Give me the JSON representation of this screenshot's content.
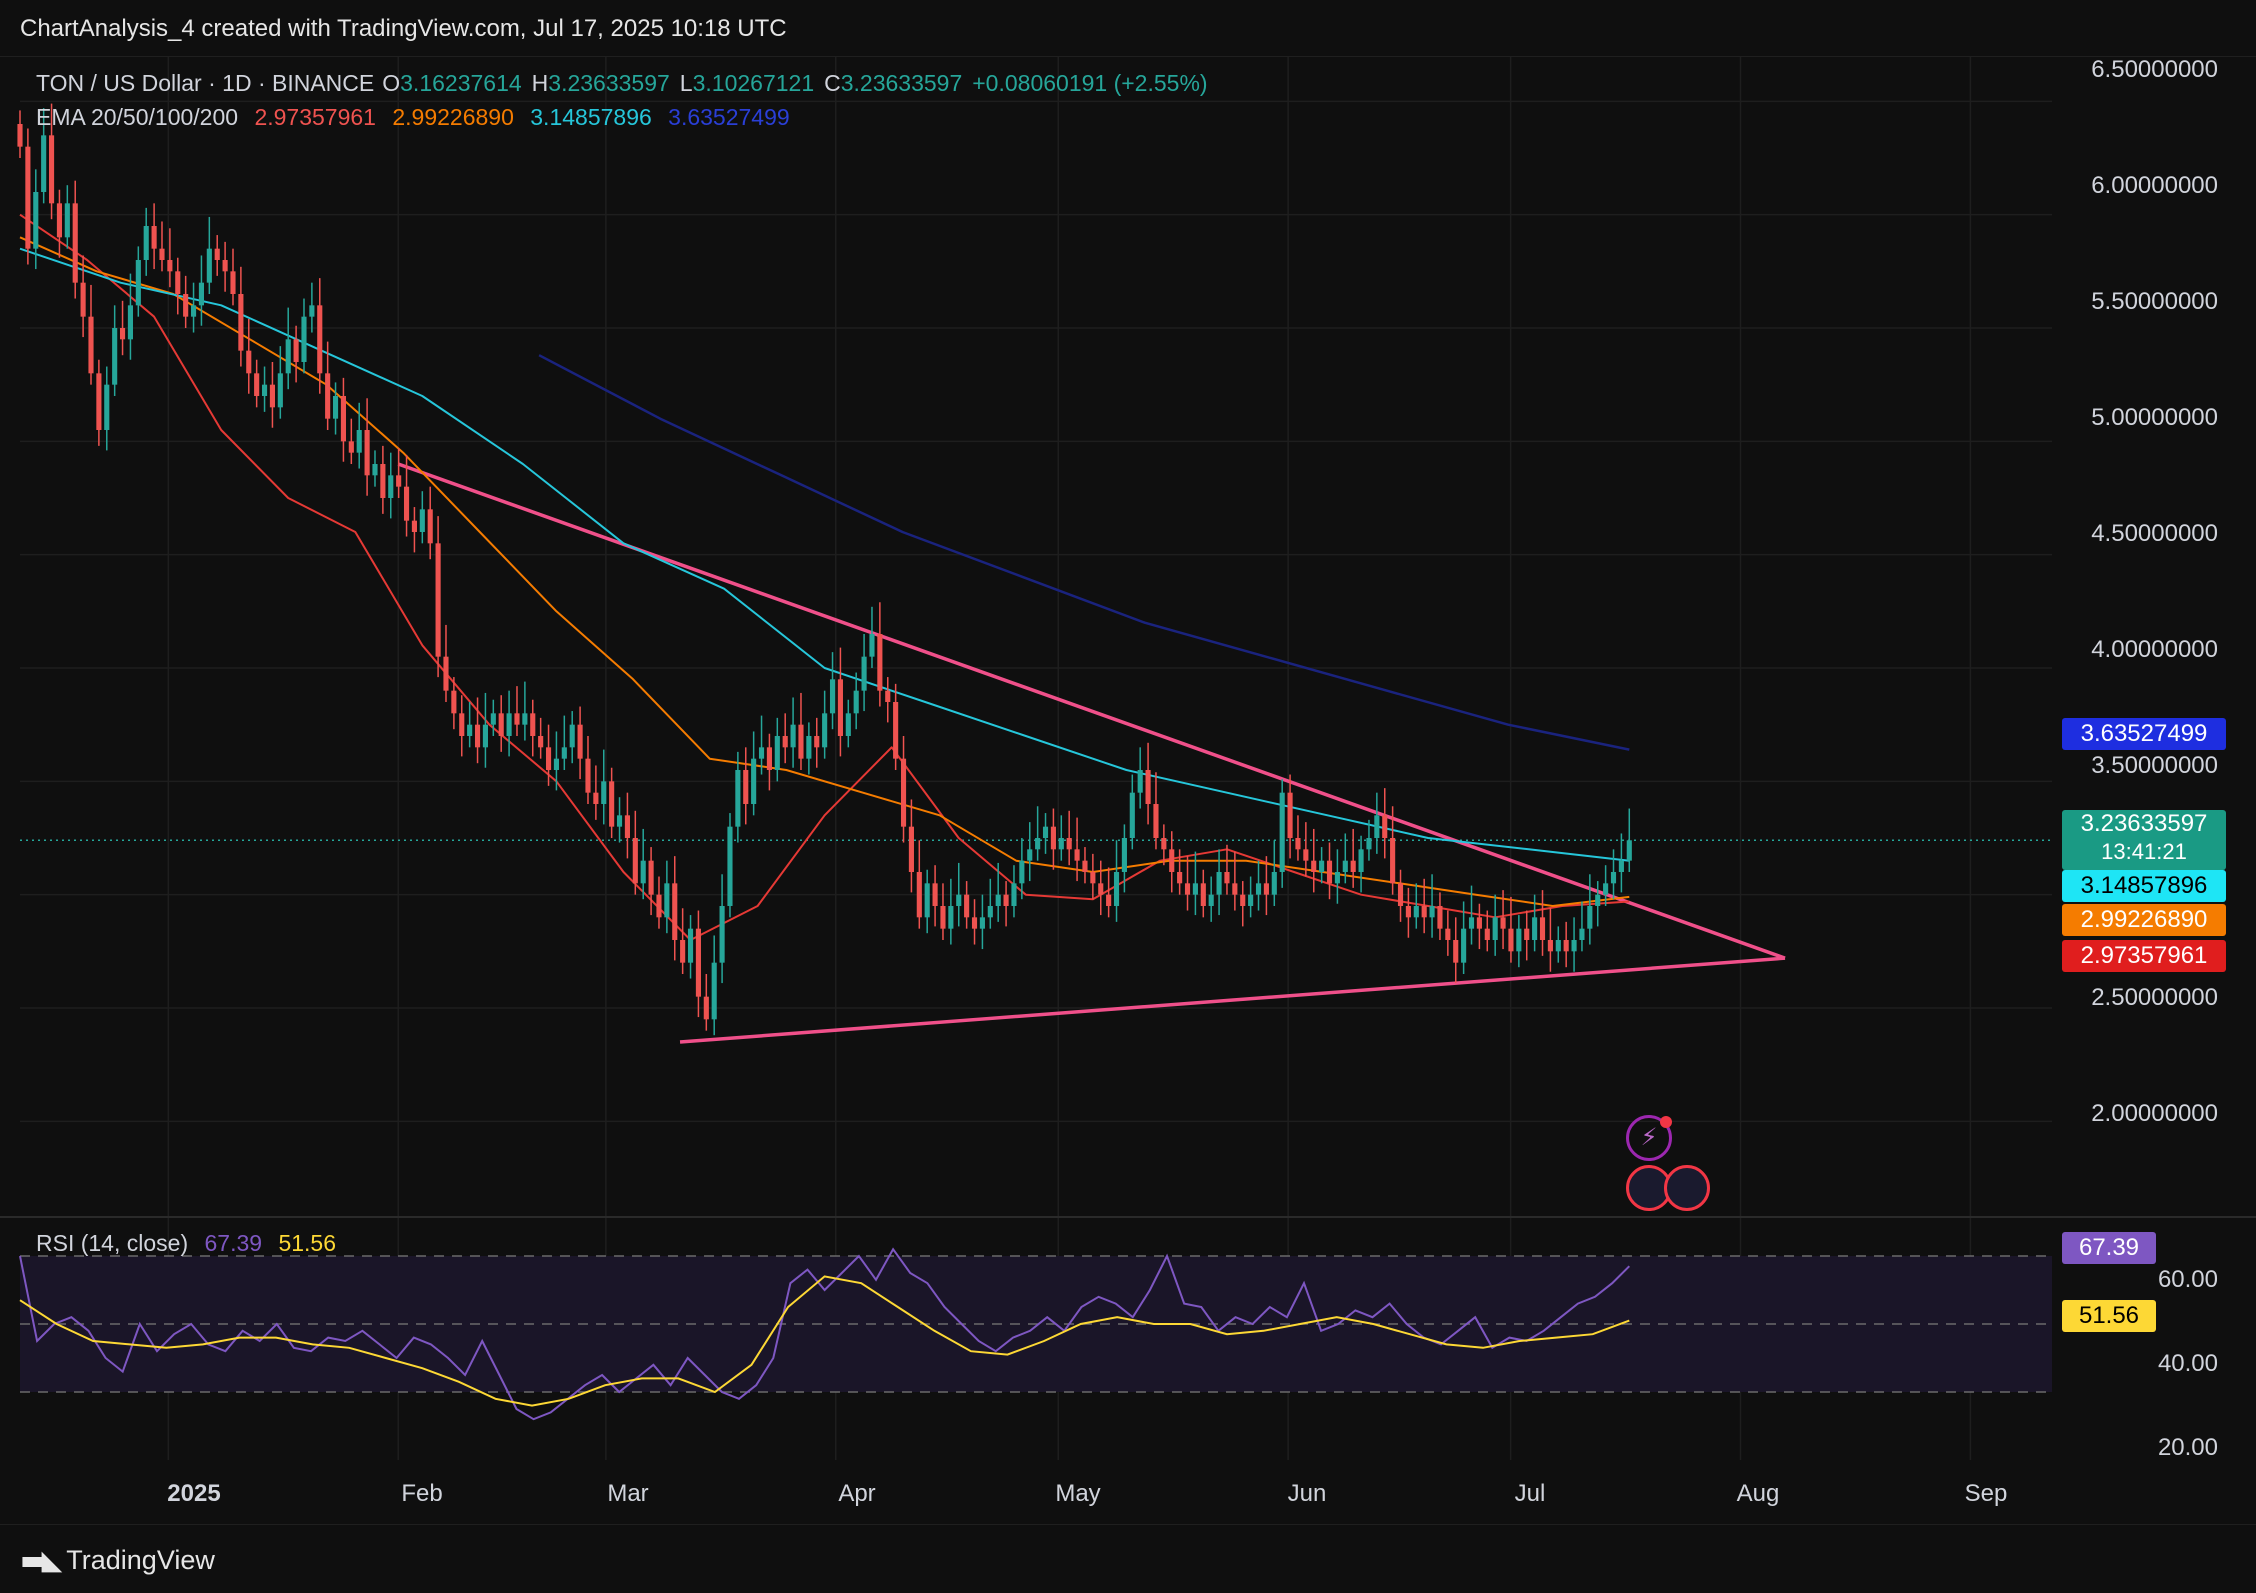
{
  "header": {
    "attribution": "ChartAnalysis_4 created with TradingView.com, Jul 17, 2025 10:18 UTC"
  },
  "legend": {
    "symbol": "TON / US Dollar · 1D · BINANCE",
    "o_label": "O",
    "o_value": "3.16237614",
    "h_label": "H",
    "h_value": "3.23633597",
    "l_label": "L",
    "l_value": "3.10267121",
    "c_label": "C",
    "c_value": "3.23633597",
    "change": "+0.08060191 (+2.55%)",
    "ema_label": "EMA 20/50/100/200",
    "ema20": "2.97357961",
    "ema50": "2.99226890",
    "ema100": "3.14857896",
    "ema200": "3.63527499"
  },
  "rsi_legend": {
    "label": "RSI (14, close)",
    "rsi": "67.39",
    "ma": "51.56"
  },
  "price_axis": [
    "6.50000000",
    "6.00000000",
    "5.50000000",
    "5.00000000",
    "4.50000000",
    "4.00000000",
    "3.50000000",
    "2.50000000",
    "2.00000000"
  ],
  "rsi_axis": [
    "60.00",
    "40.00",
    "20.00"
  ],
  "badges": {
    "ema200": "3.63527499",
    "price": "3.23633597",
    "countdown": "13:41:21",
    "ema100": "3.14857896",
    "ema50": "2.99226890",
    "ema20": "2.97357961",
    "rsi": "67.39",
    "rsi_ma": "51.56"
  },
  "time_axis": [
    "2025",
    "Feb",
    "Mar",
    "Apr",
    "May",
    "Jun",
    "Jul",
    "Aug",
    "Sep"
  ],
  "colors": {
    "up": "#26a69a",
    "down": "#ef5350",
    "ema20": "#e53935",
    "ema50": "#f57c00",
    "ema100": "#26c6da",
    "ema200": "#1a237e",
    "trendline": "#f0508a",
    "rsi": "#7e57c2",
    "rsi_ma": "#fdd835"
  },
  "footer": {
    "brand": "TradingView"
  },
  "chart_data": {
    "type": "candlestick",
    "title": "TON / US Dollar · 1D · BINANCE",
    "ylim": [
      1.6,
      6.7
    ],
    "x_range": [
      "2024-12-12",
      "2025-09-12"
    ],
    "ohlc": {
      "start_date": "2024-12-12",
      "closes": [
        6.3,
        5.85,
        6.1,
        6.35,
        6.05,
        5.9,
        6.05,
        5.7,
        5.55,
        5.3,
        5.05,
        5.25,
        5.5,
        5.45,
        5.6,
        5.8,
        5.95,
        5.85,
        5.8,
        5.75,
        5.65,
        5.55,
        5.6,
        5.7,
        5.85,
        5.8,
        5.75,
        5.65,
        5.4,
        5.3,
        5.2,
        5.25,
        5.15,
        5.3,
        5.45,
        5.35,
        5.55,
        5.6,
        5.3,
        5.1,
        5.2,
        5.0,
        4.95,
        5.05,
        4.85,
        4.9,
        4.75,
        4.85,
        4.8,
        4.65,
        4.6,
        4.7,
        4.55,
        4.05,
        3.9,
        3.8,
        3.7,
        3.75,
        3.65,
        3.75,
        3.8,
        3.7,
        3.8,
        3.75,
        3.8,
        3.7,
        3.65,
        3.55,
        3.6,
        3.65,
        3.75,
        3.6,
        3.45,
        3.4,
        3.5,
        3.3,
        3.35,
        3.25,
        3.05,
        3.15,
        3.0,
        2.9,
        3.05,
        2.8,
        2.7,
        2.85,
        2.55,
        2.45,
        2.7,
        2.95,
        3.3,
        3.55,
        3.4,
        3.6,
        3.65,
        3.55,
        3.7,
        3.65,
        3.75,
        3.6,
        3.7,
        3.65,
        3.8,
        3.95,
        3.7,
        3.8,
        3.9,
        4.05,
        4.15,
        3.9,
        3.85,
        3.6,
        3.3,
        3.1,
        2.9,
        3.05,
        2.95,
        2.85,
        2.95,
        3.0,
        2.9,
        2.85,
        2.9,
        2.95,
        3.0,
        2.95,
        3.05,
        3.15,
        3.2,
        3.25,
        3.3,
        3.2,
        3.25,
        3.2,
        3.15,
        3.1,
        3.05,
        3.0,
        2.95,
        3.1,
        3.25,
        3.45,
        3.55,
        3.4,
        3.25,
        3.2,
        3.1,
        3.05,
        3.0,
        3.05,
        2.95,
        3.0,
        3.1,
        3.05,
        3.0,
        2.95,
        3.0,
        3.05,
        3.0,
        3.1,
        3.45,
        3.25,
        3.2,
        3.15,
        3.1,
        3.15,
        3.05,
        3.1,
        3.15,
        3.1,
        3.2,
        3.25,
        3.35,
        3.25,
        3.05,
        2.95,
        2.9,
        2.95,
        2.9,
        2.95,
        2.85,
        2.8,
        2.7,
        2.85,
        2.9,
        2.85,
        2.8,
        2.9,
        2.85,
        2.75,
        2.85,
        2.8,
        2.9,
        2.8,
        2.75,
        2.8,
        2.75,
        2.8,
        2.85,
        2.95,
        3.0,
        3.05,
        3.1,
        3.15,
        3.24
      ]
    },
    "ema": {
      "ema20": [
        6.0,
        5.8,
        5.55,
        5.05,
        4.75,
        4.6,
        4.1,
        3.75,
        3.5,
        3.1,
        2.8,
        2.95,
        3.35,
        3.65,
        3.25,
        3.0,
        2.98,
        3.15,
        3.2,
        3.1,
        3.0,
        2.95,
        2.9,
        2.95,
        2.97
      ],
      "ema50": [
        5.9,
        5.75,
        5.65,
        5.45,
        5.25,
        4.95,
        4.6,
        4.25,
        3.95,
        3.6,
        3.55,
        3.45,
        3.35,
        3.15,
        3.1,
        3.15,
        3.15,
        3.1,
        3.05,
        3.0,
        2.95,
        2.99
      ],
      "ema100": [
        5.85,
        5.7,
        5.6,
        5.4,
        5.2,
        4.9,
        4.55,
        4.35,
        4.0,
        3.85,
        3.7,
        3.55,
        3.45,
        3.35,
        3.25,
        3.2,
        3.15
      ],
      "ema200": [
        5.38,
        5.1,
        4.85,
        4.6,
        4.4,
        4.2,
        4.05,
        3.9,
        3.75,
        3.64
      ]
    },
    "trendlines": {
      "descending": {
        "from": [
          "2025-02-01",
          4.9
        ],
        "to": [
          "2025-08-07",
          2.72
        ]
      },
      "ascending": {
        "from": [
          "2025-03-11",
          2.35
        ],
        "to": [
          "2025-08-07",
          2.72
        ]
      }
    },
    "rsi": {
      "values": [
        70,
        45,
        50,
        52,
        48,
        40,
        36,
        50,
        42,
        47,
        50,
        44,
        42,
        48,
        45,
        50,
        43,
        42,
        46,
        45,
        48,
        44,
        40,
        46,
        44,
        40,
        35,
        45,
        35,
        25,
        22,
        24,
        28,
        32,
        35,
        30,
        34,
        38,
        32,
        40,
        35,
        30,
        28,
        32,
        40,
        62,
        66,
        60,
        65,
        70,
        63,
        72,
        65,
        62,
        55,
        50,
        45,
        42,
        46,
        48,
        52,
        48,
        55,
        58,
        56,
        52,
        60,
        70,
        56,
        55,
        48,
        52,
        50,
        55,
        52,
        62,
        48,
        50,
        54,
        52,
        56,
        50,
        46,
        44,
        48,
        52,
        43,
        46,
        45,
        48,
        52,
        56,
        58,
        62,
        67
      ],
      "ma": [
        57,
        50,
        45,
        44,
        43,
        44,
        46,
        46,
        44,
        43,
        40,
        37,
        33,
        28,
        26,
        28,
        32,
        34,
        34,
        30,
        38,
        55,
        64,
        62,
        55,
        48,
        42,
        41,
        45,
        50,
        52,
        50,
        50,
        47,
        48,
        50,
        52,
        50,
        47,
        44,
        43,
        45,
        46,
        47,
        51
      ],
      "ylim": [
        10,
        80
      ],
      "bands": [
        30,
        50,
        70
      ]
    }
  }
}
